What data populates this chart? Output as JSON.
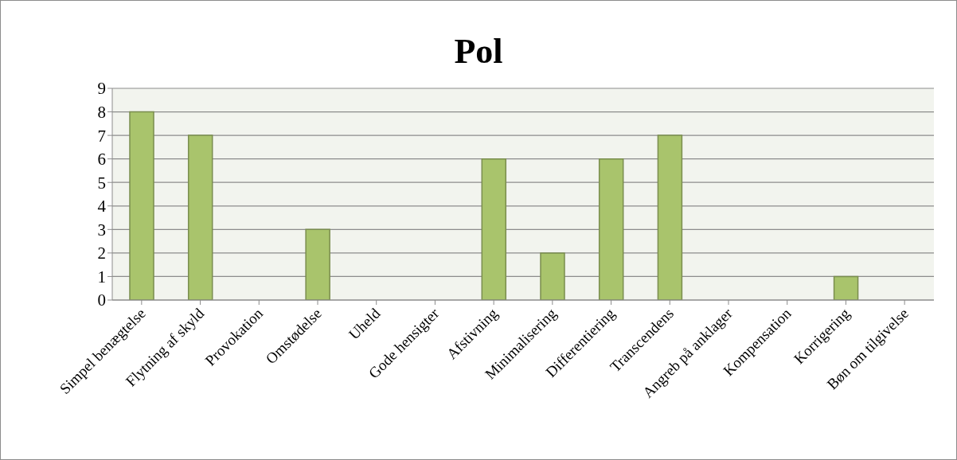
{
  "chart_data": {
    "type": "bar",
    "title": "Pol",
    "categories": [
      "Simpel benægtelse",
      "Flytning af skyld",
      "Provokation",
      "Omstødelse",
      "Uheld",
      "Gode hensigter",
      "Afstivning",
      "Minimalisering",
      "Differentiering",
      "Transcendens",
      "Angreb på anklager",
      "Kompensation",
      "Korrigering",
      "Bøn om tilgivelse"
    ],
    "values": [
      8,
      7,
      0,
      3,
      0,
      0,
      6,
      2,
      6,
      7,
      0,
      0,
      1,
      0
    ],
    "color": "#a9c46c",
    "ylim": [
      0,
      9
    ],
    "yticks": [
      0,
      1,
      2,
      3,
      4,
      5,
      6,
      7,
      8,
      9
    ],
    "grid": "y"
  }
}
